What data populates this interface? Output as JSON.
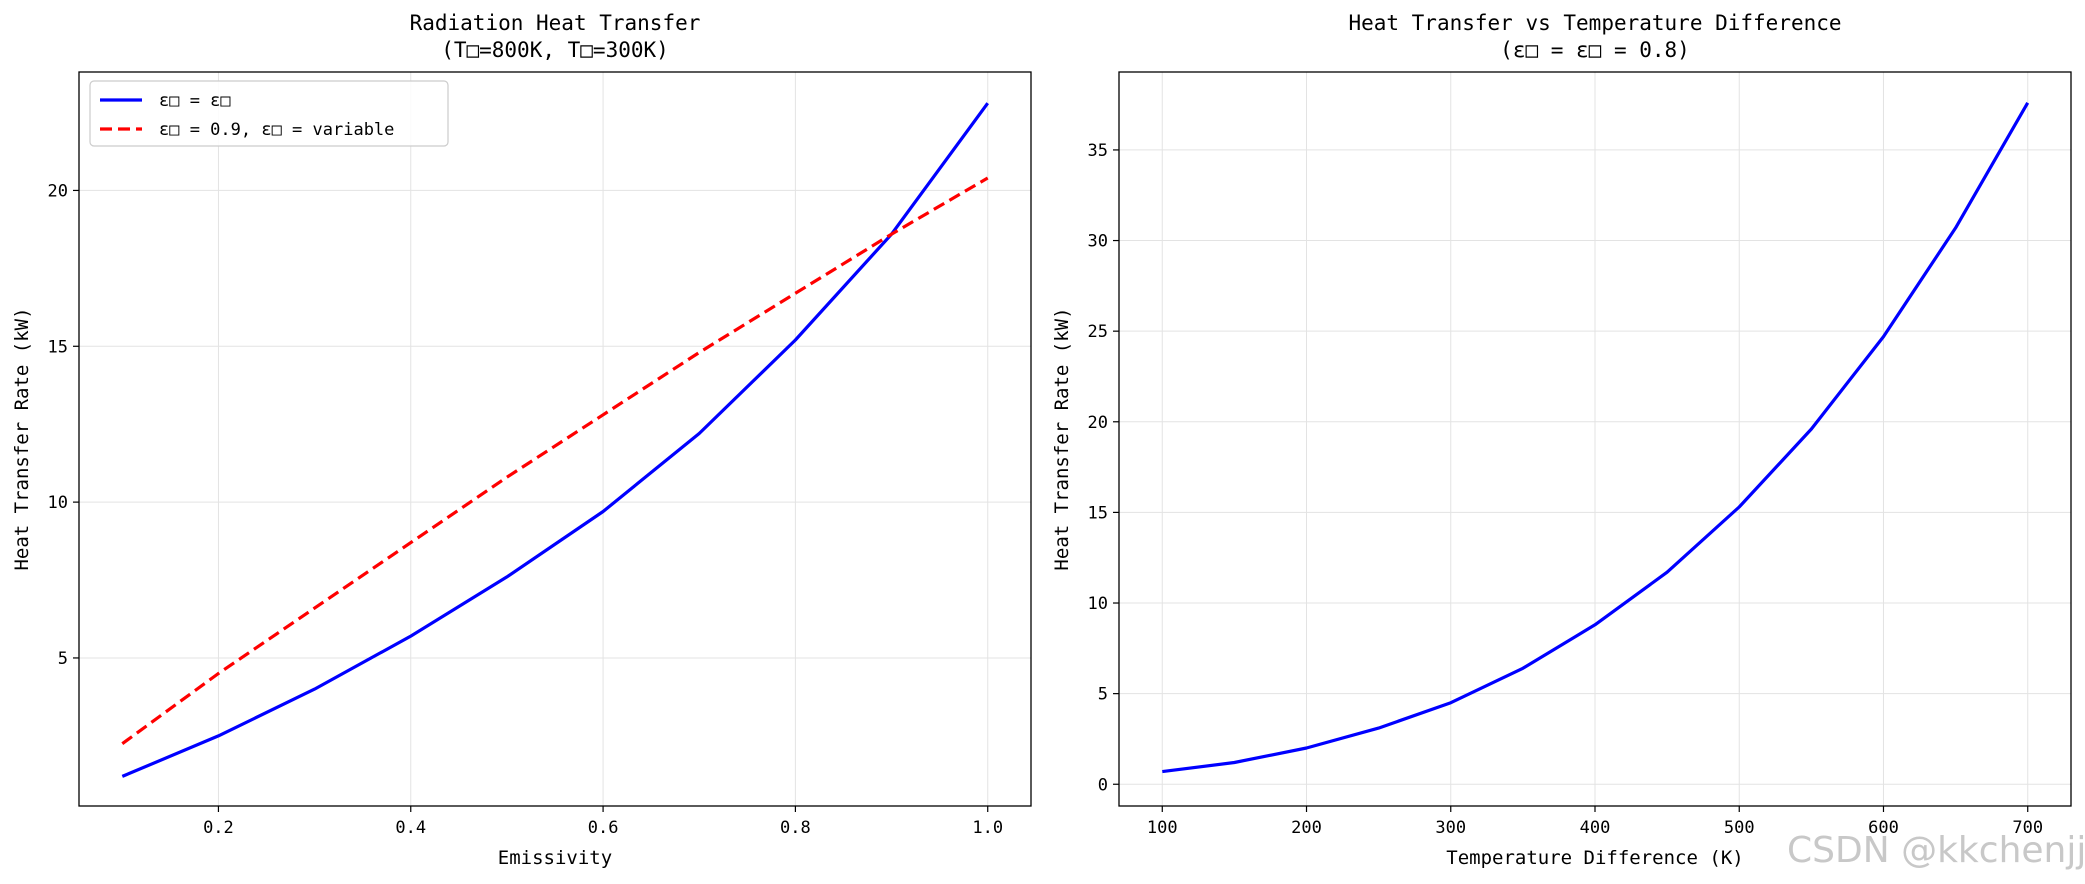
{
  "chart_data": [
    {
      "type": "line",
      "title": "Radiation Heat Transfer",
      "subtitle": "(T□=800K, T□=300K)",
      "xlabel": "Emissivity",
      "ylabel": "Heat Transfer Rate (kW)",
      "xlim": [
        0.055,
        1.045
      ],
      "ylim": [
        0.25,
        23.8
      ],
      "xticks": [
        0.2,
        0.4,
        0.6,
        0.8,
        1.0
      ],
      "xtick_labels": [
        "0.2",
        "0.4",
        "0.6",
        "0.8",
        "1.0"
      ],
      "yticks": [
        5,
        10,
        15,
        20
      ],
      "ytick_labels": [
        "5",
        "10",
        "15",
        "20"
      ],
      "grid": true,
      "legend_position": "top-left",
      "series": [
        {
          "name": "ε□ = ε□",
          "color": "#0000ff",
          "style": "solid",
          "x": [
            0.1,
            0.2,
            0.3,
            0.4,
            0.5,
            0.6,
            0.7,
            0.8,
            0.9,
            1.0
          ],
          "y": [
            1.2,
            2.5,
            4.0,
            5.7,
            7.6,
            9.7,
            12.2,
            15.2,
            18.6,
            22.8
          ]
        },
        {
          "name": "ε□ = 0.9, ε□ = variable",
          "color": "#ff0000",
          "style": "dashed",
          "x": [
            0.1,
            0.2,
            0.3,
            0.4,
            0.5,
            0.6,
            0.7,
            0.8,
            0.9,
            1.0
          ],
          "y": [
            2.25,
            4.5,
            6.6,
            8.7,
            10.8,
            12.8,
            14.8,
            16.7,
            18.6,
            20.4
          ]
        }
      ]
    },
    {
      "type": "line",
      "title": "Heat Transfer vs Temperature Difference",
      "subtitle": "(ε□ = ε□ = 0.8)",
      "xlabel": "Temperature Difference (K)",
      "ylabel": "Heat Transfer Rate (kW)",
      "xlim": [
        70,
        730
      ],
      "ylim": [
        -1.2,
        39.3
      ],
      "xticks": [
        100,
        200,
        300,
        400,
        500,
        600,
        700
      ],
      "xtick_labels": [
        "100",
        "200",
        "300",
        "400",
        "500",
        "600",
        "700"
      ],
      "yticks": [
        0,
        5,
        10,
        15,
        20,
        25,
        30,
        35
      ],
      "ytick_labels": [
        "0",
        "5",
        "10",
        "15",
        "20",
        "25",
        "30",
        "35"
      ],
      "grid": true,
      "series": [
        {
          "color": "#0000ff",
          "style": "solid",
          "x": [
            100,
            150,
            200,
            250,
            300,
            350,
            400,
            450,
            500,
            550,
            600,
            650,
            700
          ],
          "y": [
            0.7,
            1.2,
            2.0,
            3.1,
            4.5,
            6.4,
            8.8,
            11.7,
            15.3,
            19.6,
            24.7,
            30.7,
            37.6
          ]
        }
      ]
    }
  ],
  "watermark": "CSDN @kkchenjj"
}
